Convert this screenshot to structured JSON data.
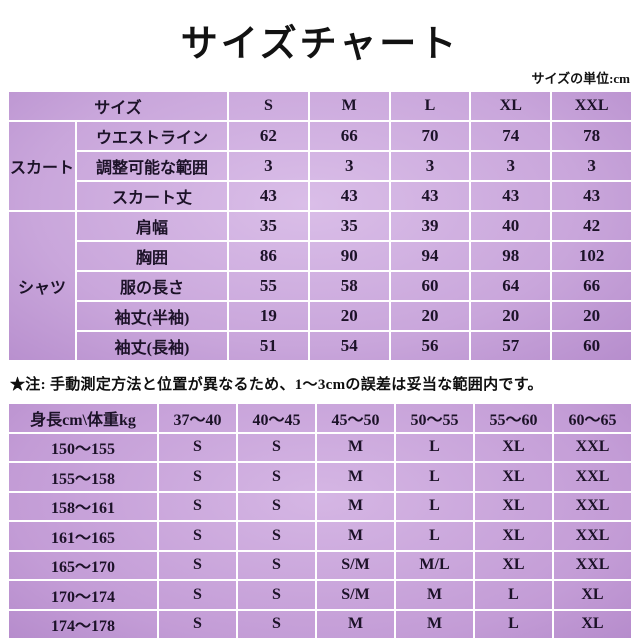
{
  "title": "サイズチャート",
  "unit_label": "サイズの単位:cm",
  "note": "★注: 手動測定方法と位置が異なるため、1～3cmの誤差は妥当な範囲内です。",
  "colors": {
    "purple_dark": "#9c6bb5",
    "purple_light": "#dabee8",
    "grid_line": "#ffffff",
    "text": "#1c1228"
  },
  "chart_data": [
    {
      "type": "table",
      "title": "サイズチャート",
      "unit": "cm",
      "corner_label": "サイズ",
      "columns": [
        "S",
        "M",
        "L",
        "XL",
        "XXL"
      ],
      "row_groups": [
        {
          "group": "スカート",
          "rows": [
            {
              "label": "ウエストライン",
              "values": [
                62,
                66,
                70,
                74,
                78
              ]
            },
            {
              "label": "調整可能な範囲",
              "values": [
                3,
                3,
                3,
                3,
                3
              ]
            },
            {
              "label": "スカート丈",
              "values": [
                43,
                43,
                43,
                43,
                43
              ]
            }
          ]
        },
        {
          "group": "シャツ",
          "rows": [
            {
              "label": "肩幅",
              "values": [
                35,
                35,
                39,
                40,
                42
              ]
            },
            {
              "label": "胸囲",
              "values": [
                86,
                90,
                94,
                98,
                102
              ]
            },
            {
              "label": "服の長さ",
              "values": [
                55,
                58,
                60,
                64,
                66
              ]
            },
            {
              "label": "袖丈(半袖)",
              "values": [
                19,
                20,
                20,
                20,
                20
              ]
            },
            {
              "label": "袖丈(長袖)",
              "values": [
                51,
                54,
                56,
                57,
                60
              ]
            }
          ]
        }
      ]
    },
    {
      "type": "table",
      "corner_label": "身長cm\\体重kg",
      "columns": [
        "37～40",
        "40～45",
        "45～50",
        "50～55",
        "55～60",
        "60～65"
      ],
      "rows": [
        {
          "label": "150～155",
          "values": [
            "S",
            "S",
            "M",
            "L",
            "XL",
            "XXL"
          ]
        },
        {
          "label": "155～158",
          "values": [
            "S",
            "S",
            "M",
            "L",
            "XL",
            "XXL"
          ]
        },
        {
          "label": "158～161",
          "values": [
            "S",
            "S",
            "M",
            "L",
            "XL",
            "XXL"
          ]
        },
        {
          "label": "161～165",
          "values": [
            "S",
            "S",
            "M",
            "L",
            "XL",
            "XXL"
          ]
        },
        {
          "label": "165～170",
          "values": [
            "S",
            "S",
            "S/M",
            "M/L",
            "XL",
            "XXL"
          ]
        },
        {
          "label": "170～174",
          "values": [
            "S",
            "S",
            "S/M",
            "M",
            "L",
            "XL"
          ]
        },
        {
          "label": "174～178",
          "values": [
            "S",
            "S",
            "M",
            "M",
            "L",
            "XL"
          ]
        }
      ]
    }
  ]
}
